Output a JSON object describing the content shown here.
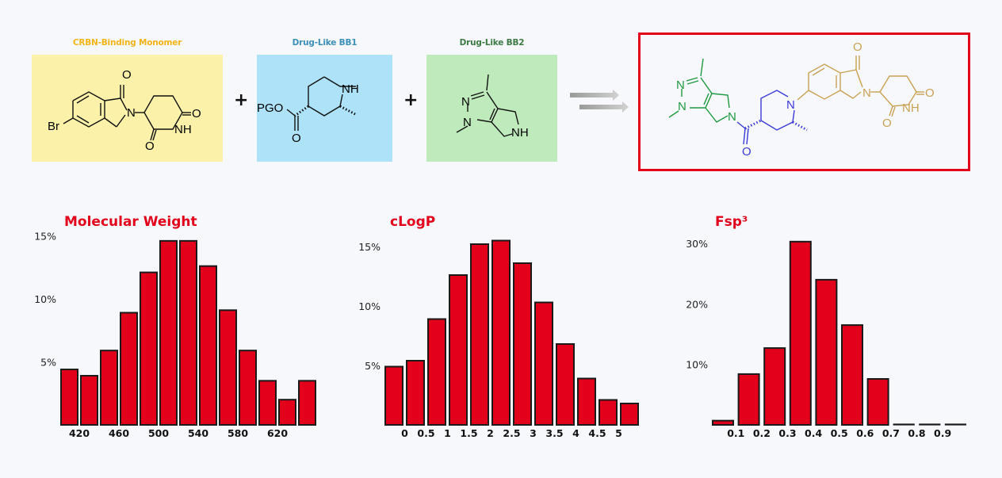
{
  "scheme": {
    "reactants": [
      {
        "label": "CRBN-Binding Monomer",
        "label_color": "#f2b517",
        "box_color": "#fbf1a9",
        "atoms": [
          "Br",
          "N",
          "O",
          "O",
          "O",
          "NH"
        ]
      },
      {
        "label": "Drug-Like BB1",
        "label_color": "#3d8fb8",
        "box_color": "#ade2f8",
        "atoms": [
          "PGO",
          "O",
          "NH"
        ]
      },
      {
        "label": "Drug-Like BB2",
        "label_color": "#3d7a45",
        "box_color": "#bfeabb",
        "atoms": [
          "N",
          "N",
          "NH"
        ]
      }
    ],
    "plus_signs": [
      "+",
      "+"
    ],
    "arrow": "reaction-arrows",
    "product": {
      "border_color": "#e2001a",
      "fragment_colors": {
        "bb2": "#1e9940",
        "bb1": "#3a3ad6",
        "crbn": "#c9a154"
      },
      "atoms": {
        "bb2": [
          "N",
          "N",
          "N"
        ],
        "bb1": [
          "N",
          "O"
        ],
        "crbn": [
          "O",
          "N",
          "O",
          "NH",
          "O"
        ]
      }
    }
  },
  "chart_data": [
    {
      "type": "bar",
      "title": "Molecular Weight",
      "xlabel": "",
      "ylabel": "",
      "categories": [
        "400-420",
        "420-440",
        "440-460",
        "460-480",
        "480-500",
        "500-520",
        "520-540",
        "540-560",
        "560-580",
        "580-600",
        "600-620",
        "620-640",
        "640-660"
      ],
      "x_tick_labels": [
        "420",
        "460",
        "500",
        "540",
        "580",
        "620"
      ],
      "y_tick_labels": [
        "5%",
        "10%",
        "15%"
      ],
      "values": [
        4.4,
        3.9,
        5.9,
        8.9,
        12.1,
        14.6,
        14.6,
        12.6,
        9.1,
        5.9,
        3.5,
        2.0,
        3.5
      ],
      "ylim": [
        0,
        15
      ],
      "grid": false,
      "unit": "%"
    },
    {
      "type": "bar",
      "title": "cLogP",
      "xlabel": "",
      "ylabel": "",
      "categories": [
        "<0",
        "0-0.5",
        "0.5-1",
        "1-1.5",
        "1.5-2",
        "2-2.5",
        "2.5-3",
        "3-3.5",
        "3.5-4",
        "4-4.5",
        "4.5-5",
        "5-5.5"
      ],
      "x_tick_labels": [
        "0",
        "0.5",
        "1",
        "1.5",
        "2",
        "2.5",
        "3",
        "3.5",
        "4",
        "4.5",
        "5"
      ],
      "y_tick_labels": [
        "5%",
        "10%",
        "15%"
      ],
      "values": [
        4.9,
        5.4,
        8.9,
        12.6,
        15.2,
        15.5,
        13.6,
        10.3,
        6.8,
        3.9,
        2.1,
        1.8
      ],
      "ylim": [
        0,
        15.5
      ],
      "grid": false,
      "unit": "%"
    },
    {
      "type": "bar",
      "title": "Fsp³",
      "xlabel": "",
      "ylabel": "",
      "categories": [
        "0-0.1",
        "0.1-0.2",
        "0.2-0.3",
        "0.3-0.4",
        "0.4-0.5",
        "0.5-0.6",
        "0.6-0.7",
        "0.7-0.8",
        "0.8-0.9",
        "0.9-1.0"
      ],
      "x_tick_labels": [
        "0.1",
        "0.2",
        "0.3",
        "0.4",
        "0.5",
        "0.6",
        "0.7",
        "0.8",
        "0.9"
      ],
      "y_tick_labels": [
        "10%",
        "20%",
        "30%"
      ],
      "values": [
        0.7,
        8.4,
        12.7,
        30.3,
        24.0,
        16.5,
        7.6,
        0.0,
        0.0,
        0.0
      ],
      "ylim": [
        0,
        30.3
      ],
      "grid": false,
      "unit": "%"
    }
  ],
  "colors": {
    "bar_fill": "#e2001a",
    "bar_stroke": "#1a1a1a",
    "title": "#e2001a",
    "background": "#f6f8fc"
  }
}
